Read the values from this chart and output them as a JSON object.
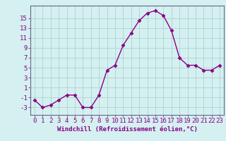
{
  "x": [
    0,
    1,
    2,
    3,
    4,
    5,
    6,
    7,
    8,
    9,
    10,
    11,
    12,
    13,
    14,
    15,
    16,
    17,
    18,
    19,
    20,
    21,
    22,
    23
  ],
  "y": [
    -1.5,
    -3,
    -2.5,
    -1.5,
    -0.5,
    -0.5,
    -3,
    -3,
    -0.5,
    4.5,
    5.5,
    9.5,
    12,
    14.5,
    16,
    16.5,
    15.5,
    12.5,
    7,
    5.5,
    5.5,
    4.5,
    4.5,
    5.5
  ],
  "line_color": "#880088",
  "marker": "D",
  "marker_size": 2.5,
  "bg_color": "#d4f0f0",
  "grid_color": "#aacccc",
  "xlabel": "Windchill (Refroidissement éolien,°C)",
  "xlabel_fontsize": 6.5,
  "tick_fontsize": 6.5,
  "ylim": [
    -4.5,
    17.5
  ],
  "yticks": [
    -3,
    -1,
    1,
    3,
    5,
    7,
    9,
    11,
    13,
    15
  ],
  "xticks": [
    0,
    1,
    2,
    3,
    4,
    5,
    6,
    7,
    8,
    9,
    10,
    11,
    12,
    13,
    14,
    15,
    16,
    17,
    18,
    19,
    20,
    21,
    22,
    23
  ],
  "spine_color": "#666688",
  "linewidth": 1.0
}
